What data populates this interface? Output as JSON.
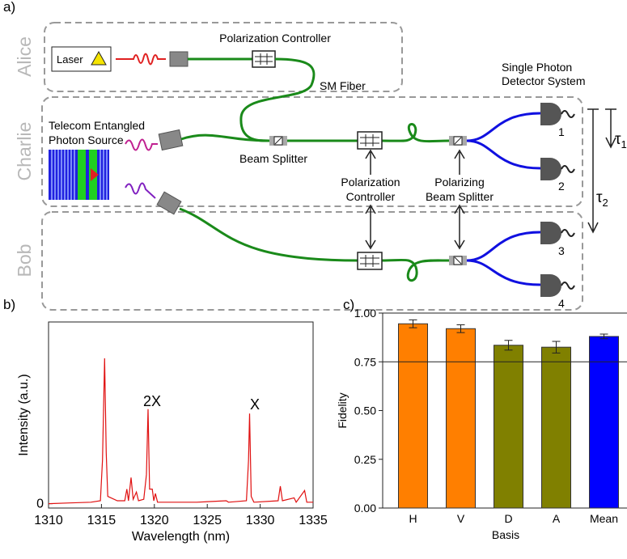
{
  "panel_labels": [
    "a)",
    "b)",
    "c)"
  ],
  "diagram": {
    "parties": [
      "Alice",
      "Charlie",
      "Bob"
    ],
    "laser": "Laser",
    "polarization_controller_top": "Polarization Controller",
    "sm_fiber": "SM Fiber",
    "detector_system": [
      "Single Photon",
      "Detector System"
    ],
    "source": [
      "Telecom Entangled",
      "Photon Source"
    ],
    "beam_splitter": "Beam Splitter",
    "polarization_controller": [
      "Polarization",
      "Controller"
    ],
    "polarizing_beam_splitter": [
      "Polarizing",
      "Beam Splitter"
    ],
    "detectors": [
      "1",
      "2",
      "3",
      "4"
    ],
    "delays": [
      {
        "symbol": "τ",
        "subscript": "1"
      },
      {
        "symbol": "τ",
        "subscript": "2"
      }
    ]
  },
  "chart_data": [
    {
      "type": "line",
      "xlabel": "Wavelength (nm)",
      "ylabel": "Intensity (a.u.)",
      "annotations": [
        "2X",
        "X"
      ],
      "color": "#e01010",
      "x": [
        1310,
        1312,
        1314,
        1314.9,
        1315.1,
        1315.3,
        1315.45,
        1315.6,
        1316.5,
        1317.2,
        1317.4,
        1317.55,
        1317.8,
        1318.0,
        1318.3,
        1318.5,
        1319.0,
        1319.25,
        1319.4,
        1319.55,
        1319.8,
        1319.95,
        1320.1,
        1320.3,
        1322,
        1324,
        1326.8,
        1327,
        1328.7,
        1328.9,
        1329.0,
        1329.15,
        1329.4,
        1331.7,
        1331.9,
        1332.1,
        1333.2,
        1333.4,
        1334.2,
        1334.4,
        1335
      ],
      "values": [
        0,
        0.005,
        0.01,
        0.02,
        0.3,
        1.0,
        0.35,
        0.05,
        0.02,
        0.02,
        0.1,
        0.02,
        0.18,
        0.03,
        0.08,
        0.02,
        0.03,
        0.2,
        0.65,
        0.1,
        0.1,
        0.02,
        0.07,
        0.01,
        0.01,
        0.01,
        0.02,
        0.01,
        0.02,
        0.3,
        0.62,
        0.05,
        0.01,
        0.02,
        0.12,
        0.02,
        0.04,
        0.01,
        0.09,
        0.01,
        0.01
      ],
      "xlim": [
        1310,
        1335
      ],
      "xticks": [
        1310,
        1315,
        1320,
        1325,
        1330,
        1335
      ],
      "ylim": [
        -0.03,
        1.25
      ],
      "yticks": [
        0
      ]
    },
    {
      "type": "bar",
      "xlabel": "Basis",
      "ylabel": "Fidelity",
      "categories": [
        "H",
        "V",
        "D",
        "A",
        "Mean"
      ],
      "values": [
        0.945,
        0.92,
        0.835,
        0.825,
        0.88
      ],
      "errors": [
        0.02,
        0.02,
        0.025,
        0.03,
        0.012
      ],
      "colors": [
        "#ff7f00",
        "#ff7f00",
        "#808000",
        "#808000",
        "#0000ff"
      ],
      "reference_line": 0.75,
      "ylim": [
        0,
        1
      ],
      "yticks": [
        {
          "value": 0,
          "label": "0.00"
        },
        {
          "value": 0.25,
          "label": "0.25"
        },
        {
          "value": 0.5,
          "label": "0.50"
        },
        {
          "value": 0.75,
          "label": "0.75"
        },
        {
          "value": 1,
          "label": "1.00"
        }
      ]
    }
  ]
}
